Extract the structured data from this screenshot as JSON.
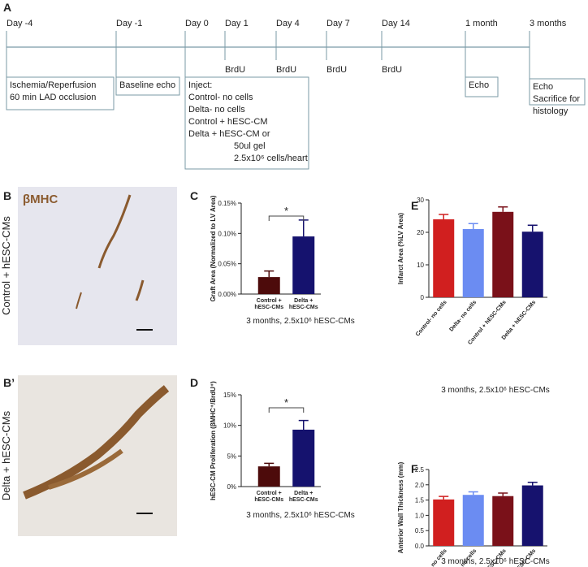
{
  "panel_labels": [
    "A",
    "B",
    "B’",
    "C",
    "D",
    "E",
    "F"
  ],
  "timeline": {
    "points": [
      "Day -4",
      "Day -1",
      "Day 0",
      "Day 1",
      "Day 4",
      "Day 7",
      "Day 14",
      "1 month",
      "3 months"
    ],
    "brdu": [
      "BrdU",
      "BrdU",
      "BrdU",
      "BrdU"
    ],
    "boxes": [
      [
        "Ischemia/Reperfusion",
        "60 min LAD occlusion"
      ],
      [
        "Baseline echo"
      ],
      [
        "Inject:",
        "Control- no cells",
        "Delta- no cells",
        "Control + hESC-CM",
        "Delta + hESC-CM or",
        "50ul gel",
        "2.5x10⁶ cells/heart"
      ],
      [
        "Echo"
      ],
      [
        "Echo",
        "Sacrifice for",
        "histology"
      ]
    ]
  },
  "images": [
    {
      "stain": "βMHC",
      "label": "Control + hESC-CMs"
    },
    {
      "label": "Delta + hESC-CMs"
    }
  ],
  "chart_data": [
    {
      "type": "bar",
      "y_label": "Graft Area (Normalized to LV Area)",
      "x_label": "3 months, 2.5x10⁶  hESC-CMs",
      "categories": [
        "Control +\nhESC-CMs",
        "Delta +\nhESC-CMs"
      ],
      "values": [
        0.028,
        0.095
      ],
      "errors": [
        0.01,
        0.027
      ],
      "colors": [
        "#4d0b0b",
        "#15126e"
      ],
      "ylim": [
        0,
        0.15
      ],
      "yticks": [
        {
          "value": 0,
          "label": "0.00%"
        },
        {
          "value": 0.05,
          "label": "0.05%"
        },
        {
          "value": 0.1,
          "label": "0.10%"
        },
        {
          "value": 0.15,
          "label": "0.15%"
        }
      ],
      "annotation": "*"
    },
    {
      "type": "bar",
      "y_label": "hESC-CM Proliferation (βMHC⁺/BrdU⁺)",
      "x_label": "3 months, 2.5x10⁶  hESC-CMs",
      "categories": [
        "Control +\nhESC-CMs",
        "Delta +\nhESC-CMs"
      ],
      "values": [
        3.3,
        9.3
      ],
      "errors": [
        0.5,
        1.5
      ],
      "colors": [
        "#4d0b0b",
        "#15126e"
      ],
      "ylim": [
        0,
        15
      ],
      "yticks": [
        {
          "value": 0,
          "label": "0%"
        },
        {
          "value": 5,
          "label": "5%"
        },
        {
          "value": 10,
          "label": "10%"
        },
        {
          "value": 15,
          "label": "15%"
        }
      ],
      "annotation": "*"
    },
    {
      "type": "bar",
      "y_label": "Infarct Area (%LV Area)",
      "x_label": "3 months, 2.5x10⁶  hESC-CMs",
      "categories": [
        "Control- no cells",
        "Delta- no cells",
        "Control + hESC-CMs",
        "Delta + hESC-CMs"
      ],
      "values": [
        24,
        21,
        26.3,
        20.2
      ],
      "errors": [
        1.5,
        1.7,
        1.5,
        2
      ],
      "colors": [
        "#d11f1f",
        "#6b8cf2",
        "#7a1119",
        "#16126e"
      ],
      "ylim": [
        0,
        30
      ],
      "yticks": [
        0,
        10,
        20,
        30
      ]
    },
    {
      "type": "bar",
      "y_label": "Anterior Wall Thickness (mm)",
      "x_label": "3 months, 2.5x10⁶  hESC-CMs",
      "categories": [
        "Control- no cells",
        "Delta- no cells",
        "Control + hESC-CMs",
        "Delta + hESC-CMs"
      ],
      "values": [
        1.52,
        1.67,
        1.63,
        1.98
      ],
      "errors": [
        0.1,
        0.1,
        0.1,
        0.1
      ],
      "colors": [
        "#d11f1f",
        "#6b8cf2",
        "#7a1119",
        "#16126e"
      ],
      "ylim": [
        0,
        2.5
      ],
      "yticks": [
        {
          "value": 0,
          "label": "0.0"
        },
        0.5,
        {
          "value": 1,
          "label": "1.0"
        },
        1.5,
        {
          "value": 2,
          "label": "2.0"
        },
        2.5
      ]
    }
  ]
}
